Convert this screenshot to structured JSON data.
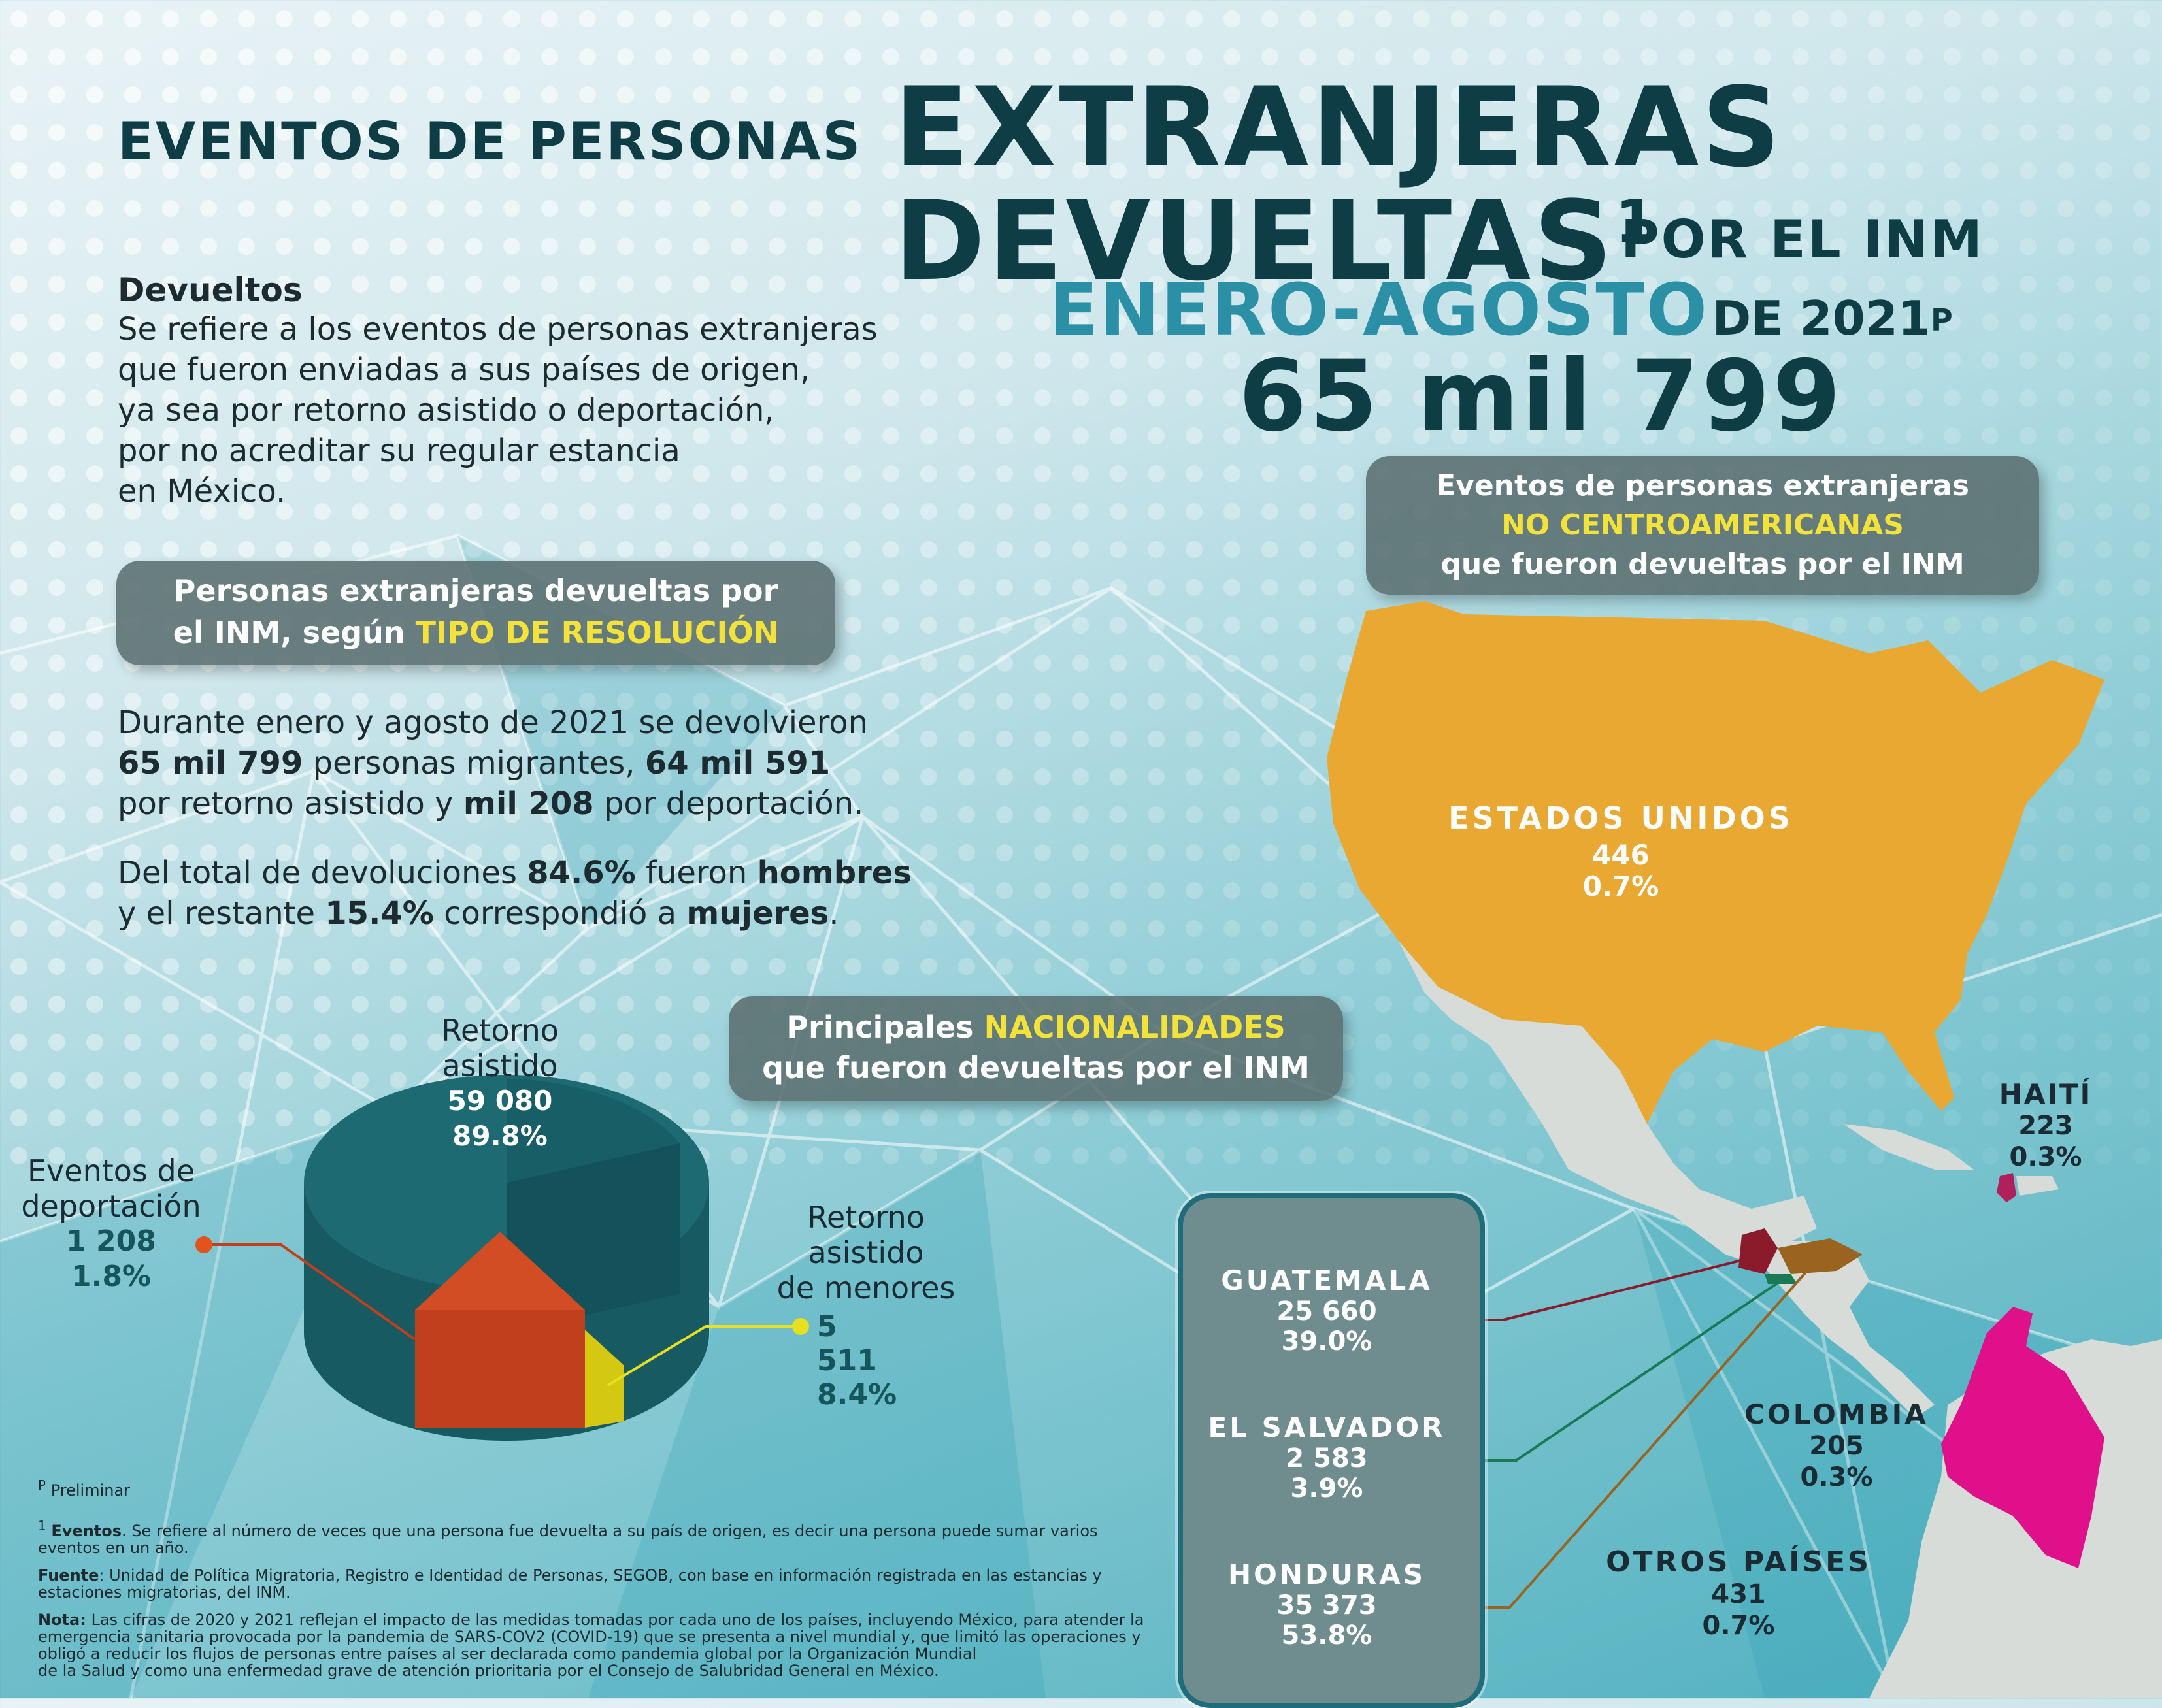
{
  "header": {
    "line1": "EVENTOS DE PERSONAS",
    "line2": "EXTRANJERAS",
    "line3": "DEVUELTAS",
    "line3_sup": "1",
    "line3_suffix": "POR EL INM",
    "line4_highlight": "ENERO-AGOSTO",
    "line4_rest": "DE 2021",
    "line4_sup": "P",
    "total": "65 mil 799"
  },
  "definition": {
    "title": "Devueltos",
    "lines": [
      "Se refiere a los eventos de personas extranjeras",
      "que fueron enviadas a sus países de origen,",
      "ya sea por retorno asistido o deportación,",
      "por no acreditar su regular estancia",
      "en México."
    ]
  },
  "resolution_pill": {
    "line1": "Personas extranjeras devueltas por",
    "line2_pre": "el INM, según",
    "line2_highlight": "TIPO DE RESOLUCIÓN"
  },
  "summary": {
    "p1_l1": "Durante enero y agosto de 2021 se devolvieron",
    "p1_l2_b1": "65 mil 799",
    "p1_l2_t1": " personas migrantes, ",
    "p1_l2_b2": "64 mil 591",
    "p1_l3_t1": "por retorno asistido y ",
    "p1_l3_b1": "mil 208",
    "p1_l3_t2": " por deportación.",
    "p2_l1_t1": "Del total de devoluciones ",
    "p2_l1_b1": "84.6%",
    "p2_l1_t2": " fueron ",
    "p2_l1_b2": "hombres",
    "p2_l2_t1": "y el restante ",
    "p2_l2_b1": "15.4%",
    "p2_l2_t2": " correspondió a ",
    "p2_l2_b2": "mujeres",
    "p2_l2_t3": "."
  },
  "pie": {
    "slices": [
      {
        "label_l1": "Retorno",
        "label_l2": "asistido",
        "value": "59 080",
        "percent": "89.8%",
        "share": 89.8,
        "color": "#1e5e68"
      },
      {
        "label_l1": "Eventos de",
        "label_l2": "deportación",
        "value": "1 208",
        "percent": "1.8%",
        "share": 1.8,
        "color": "#c0401e"
      },
      {
        "label_l1": "Retorno",
        "label_l2": "asistido",
        "label_l3": "de menores",
        "value": "5 511",
        "percent": "8.4%",
        "share": 8.4,
        "color": "#d4c812"
      }
    ]
  },
  "non_central_pill": {
    "line1": "Eventos de personas extranjeras",
    "line2_highlight": "NO CENTROAMERICANAS",
    "line3": "que fueron devueltas por el INM"
  },
  "nationalities_pill": {
    "line1_pre": "Principales",
    "line1_highlight": "NACIONALIDADES",
    "line2": "que fueron devueltas por el INM"
  },
  "countries": [
    {
      "name": "ESTADOS UNIDOS",
      "value": "446",
      "percent": "0.7%",
      "color": "#e8a832"
    },
    {
      "name": "HAITÍ",
      "value": "223",
      "percent": "0.3%",
      "color": "#b0205a"
    },
    {
      "name": "COLOMBIA",
      "value": "205",
      "percent": "0.3%",
      "color": "#e0108a"
    },
    {
      "name": "OTROS PAÍSES",
      "value": "431",
      "percent": "0.7%"
    }
  ],
  "central": [
    {
      "name": "GUATEMALA",
      "value": "25 660",
      "percent": "39.0%",
      "color": "#8b1a2a"
    },
    {
      "name": "EL SALVADOR",
      "value": "2 583",
      "percent": "3.9%",
      "color": "#1a7a55"
    },
    {
      "name": "HONDURAS",
      "value": "35 373",
      "percent": "53.8%",
      "color": "#9a6420"
    }
  ],
  "notes": {
    "preliminar_sup": "P",
    "preliminar": "Preliminar",
    "eventos_sup": "1",
    "eventos_b": "Eventos",
    "eventos_l1": ". Se refiere al número de veces que una persona fue devuelta a su país de origen,  es decir una persona puede sumar varios",
    "eventos_l2": "eventos en un año.",
    "fuente_b": "Fuente",
    "fuente_l1": ": Unidad de Política Migratoria, Registro e Identidad de Personas, SEGOB, con base en información registrada en las estancias y",
    "fuente_l2": "estaciones migratorias, del INM.",
    "nota_b": "Nota:",
    "nota_l1": " Las cifras de 2020 y 2021 reflejan el impacto de las medidas tomadas por cada uno de los países, incluyendo México, para atender la",
    "nota_l2": "emergencia sanitaria provocada por la pandemia de SARS-COV2 (COVID-19) que se presenta a nivel mundial y, que limitó las operaciones y",
    "nota_l3": "obligó a reducir los flujos de personas entre países al ser declarada como pandemia global por la Organización Mundial",
    "nota_l4": "de la Salud y como una enfermedad grave de atención prioritaria por el Consejo de Salubridad General en México."
  }
}
